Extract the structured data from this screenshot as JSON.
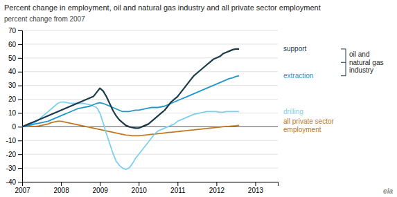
{
  "chart_data": {
    "type": "line",
    "title": "Percent change in employment, oil and natural gas industry and all private sector employment",
    "subtitle": "percent change  from 2007",
    "x": [
      2007.0,
      2007.083,
      2007.167,
      2007.25,
      2007.333,
      2007.417,
      2007.5,
      2007.583,
      2007.667,
      2007.75,
      2007.833,
      2007.917,
      2008.0,
      2008.083,
      2008.167,
      2008.25,
      2008.333,
      2008.417,
      2008.5,
      2008.583,
      2008.667,
      2008.75,
      2008.833,
      2008.917,
      2009.0,
      2009.083,
      2009.167,
      2009.25,
      2009.333,
      2009.417,
      2009.5,
      2009.583,
      2009.667,
      2009.75,
      2009.833,
      2009.917,
      2010.0,
      2010.083,
      2010.167,
      2010.25,
      2010.333,
      2010.417,
      2010.5,
      2010.583,
      2010.667,
      2010.75,
      2010.833,
      2010.917,
      2011.0,
      2011.083,
      2011.167,
      2011.25,
      2011.333,
      2011.417,
      2011.5,
      2011.583,
      2011.667,
      2011.75,
      2011.833,
      2011.917,
      2012.0,
      2012.083,
      2012.167,
      2012.25,
      2012.333,
      2012.417,
      2012.5,
      2012.583
    ],
    "xlim": [
      2007,
      2013.58
    ],
    "xticks": [
      2007,
      2008,
      2009,
      2010,
      2011,
      2012,
      2013
    ],
    "ylim": [
      -40,
      70
    ],
    "yticks": [
      -40,
      -30,
      -20,
      -10,
      0,
      10,
      20,
      30,
      40,
      50,
      60,
      70
    ],
    "grid": true,
    "series": [
      {
        "name": "support",
        "color": "#1a3a4a",
        "values": [
          0,
          1,
          2,
          3,
          4,
          5,
          6,
          7,
          8,
          9,
          10,
          11,
          12,
          13,
          14,
          15,
          16,
          17,
          18,
          19,
          20,
          21,
          22,
          25,
          28,
          26,
          22,
          17,
          12,
          8,
          5,
          3,
          1,
          0,
          -0.5,
          -1,
          -1,
          0,
          1,
          2,
          4,
          6,
          8,
          10,
          12,
          15,
          18,
          20,
          22,
          25,
          28,
          31,
          34,
          37,
          39,
          41,
          43,
          45,
          47,
          49,
          50,
          51,
          53,
          54,
          55,
          56,
          56.5,
          56.5
        ]
      },
      {
        "name": "extraction",
        "color": "#2196c8",
        "values": [
          0,
          0.5,
          1,
          1.5,
          2,
          2.5,
          3,
          3.5,
          4,
          5,
          6,
          7,
          8,
          9,
          10,
          11,
          12,
          13,
          13.5,
          14,
          14.5,
          15,
          16,
          17,
          17.5,
          17,
          16,
          15,
          14,
          13,
          12,
          11,
          11,
          11,
          11.5,
          12,
          12,
          12.5,
          13,
          13.5,
          14,
          14,
          14,
          14.5,
          15,
          16,
          17,
          18,
          19,
          20,
          21,
          22,
          23,
          24,
          25,
          26,
          27,
          28,
          29,
          30,
          31,
          32,
          33,
          34,
          35,
          35.5,
          36.5,
          37
        ]
      },
      {
        "name": "drilling",
        "color": "#7dd0f0",
        "values": [
          0,
          0.5,
          1,
          2,
          3,
          5,
          7,
          9,
          11,
          13,
          15,
          17,
          18,
          18,
          17.5,
          17,
          17,
          17,
          17,
          17,
          16.5,
          16,
          15,
          14,
          10,
          3,
          -5,
          -12,
          -19,
          -25,
          -28,
          -30,
          -31,
          -30,
          -27,
          -23,
          -20,
          -17,
          -14,
          -11,
          -8,
          -5,
          -3,
          -2,
          -1,
          0,
          1,
          2,
          4,
          5,
          6,
          7,
          8,
          9,
          9.5,
          10,
          10.5,
          11,
          11,
          11,
          11,
          10.5,
          10.5,
          11,
          11,
          11,
          11,
          11
        ]
      },
      {
        "name": "all private sector\nemployment",
        "color": "#c07820",
        "values": [
          0,
          0.2,
          0.3,
          0.3,
          0.2,
          0.5,
          1,
          1.5,
          2,
          3,
          3.5,
          4,
          4,
          3.5,
          3,
          2.5,
          2,
          1.5,
          1,
          0.5,
          0,
          -0.5,
          -1,
          -1.5,
          -2,
          -2.5,
          -3,
          -3.5,
          -4,
          -4.5,
          -5,
          -5.5,
          -6,
          -6.2,
          -6.5,
          -6.5,
          -6.5,
          -6.3,
          -6,
          -5.8,
          -5.5,
          -5.3,
          -5,
          -4.8,
          -4.5,
          -4.2,
          -4,
          -3.8,
          -3.5,
          -3.2,
          -3,
          -2.8,
          -2.5,
          -2.3,
          -2,
          -1.8,
          -1.5,
          -1.3,
          -1,
          -0.8,
          -0.5,
          -0.3,
          0,
          0.2,
          0.3,
          0.5,
          0.7,
          1.0
        ]
      }
    ],
    "annotations": [
      {
        "text": "oil and\nnatural gas\nindustry"
      },
      {
        "text": "eia"
      }
    ]
  }
}
